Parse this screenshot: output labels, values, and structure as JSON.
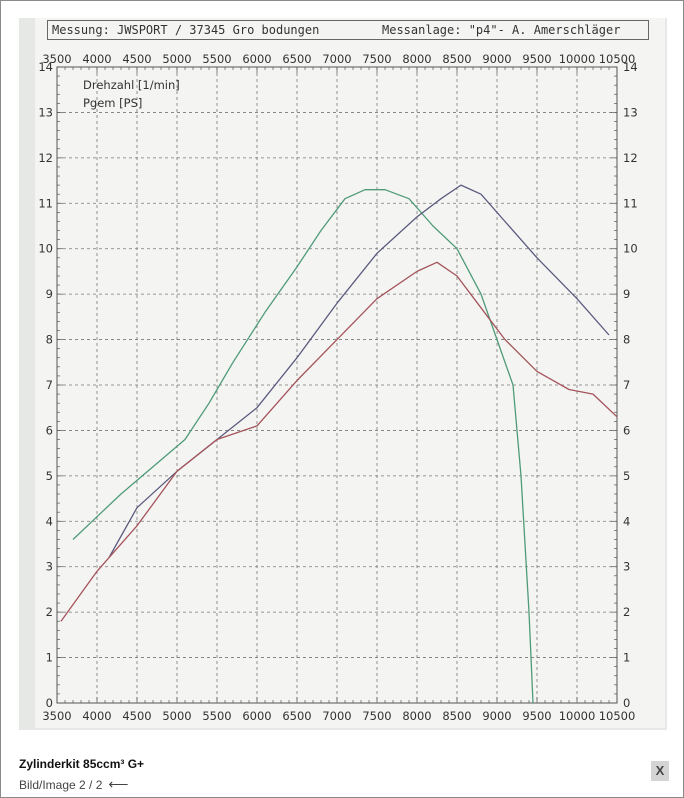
{
  "header": {
    "measurement_label": "Messung:  JWSPORT / 37345 Gro bodungen",
    "station_label": "Messanlage: \"p4\"- A. Amerschläger"
  },
  "caption": {
    "title": "Zylinderkit 85ccm³ G+",
    "subtitle": "Bild/Image 2 / 2",
    "back_arrow": "⟵",
    "close_label": "X"
  },
  "chart_data": {
    "type": "line",
    "title": "",
    "xlim": [
      3500,
      10500
    ],
    "ylim": [
      0,
      14
    ],
    "x_ticks": [
      3500,
      4000,
      4500,
      5000,
      5500,
      6000,
      6500,
      7000,
      7500,
      8000,
      8500,
      9000,
      9500,
      10000,
      10500
    ],
    "y_ticks": [
      0,
      1,
      2,
      3,
      4,
      5,
      6,
      7,
      8,
      9,
      10,
      11,
      12,
      13,
      14
    ],
    "legend": [
      "Drehzahl [1/min]",
      "Pgem [PS]"
    ],
    "grid": true,
    "series": [
      {
        "color": "#4f9a78",
        "points": [
          [
            3700,
            3.6
          ],
          [
            4000,
            4.1
          ],
          [
            4300,
            4.6
          ],
          [
            4700,
            5.2
          ],
          [
            5100,
            5.8
          ],
          [
            5400,
            6.6
          ],
          [
            5700,
            7.5
          ],
          [
            6100,
            8.6
          ],
          [
            6500,
            9.6
          ],
          [
            6800,
            10.4
          ],
          [
            7100,
            11.1
          ],
          [
            7350,
            11.3
          ],
          [
            7600,
            11.3
          ],
          [
            7900,
            11.1
          ],
          [
            8200,
            10.5
          ],
          [
            8500,
            10.0
          ],
          [
            8800,
            9.0
          ],
          [
            9000,
            8.0
          ],
          [
            9200,
            7.0
          ],
          [
            9300,
            5.0
          ],
          [
            9400,
            2.0
          ],
          [
            9450,
            0
          ]
        ]
      },
      {
        "color": "#5b5a7e",
        "points": [
          [
            4150,
            3.2
          ],
          [
            4500,
            4.3
          ],
          [
            5000,
            5.1
          ],
          [
            5500,
            5.8
          ],
          [
            6000,
            6.5
          ],
          [
            6500,
            7.6
          ],
          [
            7000,
            8.8
          ],
          [
            7500,
            9.9
          ],
          [
            8000,
            10.7
          ],
          [
            8300,
            11.1
          ],
          [
            8550,
            11.4
          ],
          [
            8800,
            11.2
          ],
          [
            9100,
            10.6
          ],
          [
            9500,
            9.8
          ],
          [
            10000,
            8.9
          ],
          [
            10400,
            8.1
          ]
        ]
      },
      {
        "color": "#a5535a",
        "points": [
          [
            3550,
            1.8
          ],
          [
            4000,
            2.9
          ],
          [
            4500,
            3.9
          ],
          [
            5000,
            5.1
          ],
          [
            5500,
            5.8
          ],
          [
            6000,
            6.1
          ],
          [
            6500,
            7.1
          ],
          [
            7000,
            8.0
          ],
          [
            7500,
            8.9
          ],
          [
            8000,
            9.5
          ],
          [
            8250,
            9.7
          ],
          [
            8500,
            9.4
          ],
          [
            8800,
            8.7
          ],
          [
            9100,
            8.0
          ],
          [
            9500,
            7.3
          ],
          [
            9900,
            6.9
          ],
          [
            10200,
            6.8
          ],
          [
            10500,
            6.3
          ]
        ]
      }
    ]
  }
}
